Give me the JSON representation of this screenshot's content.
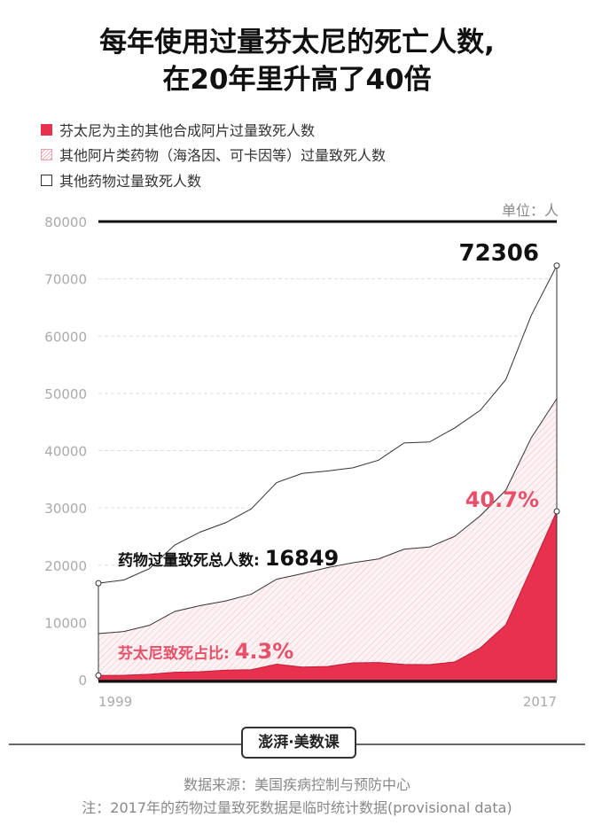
{
  "title_line1": "每年使用过量芬太尼的死亡人数,",
  "title_line2": "在20年里升高了40倍",
  "legend": [
    {
      "label": "芬太尼为主的其他合成阿片过量致死人数",
      "color": "#e8304f",
      "style": "solid"
    },
    {
      "label": "其他阿片类药物（海洛因、可卡因等）过量致死人数",
      "color": "#f3c9cf",
      "style": "hatched"
    },
    {
      "label": "其他药物过量致死人数",
      "color": "#ffffff",
      "style": "outline"
    }
  ],
  "unit": "单位：人",
  "logo_text": "澎湃·美数课",
  "source": "数据来源：美国疾病控制与预防中心",
  "note": "注：2017年的药物过量致死数据是临时统计数据(provisional data)",
  "annotations": {
    "total_1999": "药物过量致死总人数: ",
    "total_1999_value": "16849",
    "total_2017": "72306",
    "fentanyl_share_1999": "芬太尼致死占比: ",
    "fentanyl_share_1999_value": "4.3%",
    "fentanyl_share_2017": "40.7%"
  },
  "chart_data": {
    "type": "area",
    "stacked": false,
    "x": [
      1999,
      2000,
      2001,
      2002,
      2003,
      2004,
      2005,
      2006,
      2007,
      2008,
      2009,
      2010,
      2011,
      2012,
      2013,
      2014,
      2015,
      2016,
      2017
    ],
    "x_tick_labels": [
      "1999",
      "2017"
    ],
    "y_ticks": [
      0,
      10000,
      20000,
      30000,
      40000,
      50000,
      60000,
      70000,
      80000
    ],
    "ylim": [
      0,
      80000
    ],
    "grid": true,
    "series": [
      {
        "name": "其他药物过量致死人数",
        "values": [
          16849,
          17415,
          19394,
          23518,
          25785,
          27424,
          29813,
          34425,
          36010,
          36450,
          37004,
          38329,
          41340,
          41502,
          43982,
          47055,
          52404,
          63632,
          72306
        ],
        "color": "#ffffff"
      },
      {
        "name": "其他阿片类药物（海洛因、可卡因等）过量致死人数",
        "values": [
          8050,
          8407,
          9496,
          11920,
          12940,
          13756,
          14918,
          17545,
          18516,
          19582,
          20422,
          21089,
          22784,
          23166,
          25052,
          28647,
          33091,
          42249,
          49068
        ],
        "color": "#f3c9cf"
      },
      {
        "name": "芬太尼为主的其他合成阿片过量致死人数",
        "values": [
          730,
          782,
          957,
          1295,
          1400,
          1664,
          1742,
          2707,
          2213,
          2306,
          2946,
          3007,
          2666,
          2628,
          3105,
          5544,
          9580,
          19413,
          29406
        ],
        "color": "#e8304f"
      }
    ]
  }
}
